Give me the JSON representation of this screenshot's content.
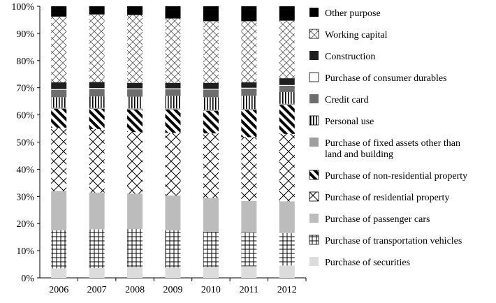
{
  "chart_data": {
    "type": "bar",
    "stacked": true,
    "normalized": true,
    "categories": [
      "2006",
      "2007",
      "2008",
      "2009",
      "2010",
      "2011",
      "2012"
    ],
    "ylim": [
      0,
      100
    ],
    "yticks": [
      "0%",
      "10%",
      "20%",
      "30%",
      "40%",
      "50%",
      "60%",
      "70%",
      "80%",
      "90%",
      "100%"
    ],
    "grid": false,
    "legend_position": "right",
    "series": [
      {
        "name": "Purchase of securities",
        "pattern": "light-gray",
        "values": [
          3.5,
          3.6,
          4.0,
          3.8,
          4.0,
          4.3,
          4.5
        ]
      },
      {
        "name": "Purchase of transportation vehicles",
        "pattern": "grid",
        "values": [
          14.0,
          14.3,
          14.0,
          13.7,
          13.0,
          12.4,
          12.0
        ]
      },
      {
        "name": "Purchase of passenger cars",
        "pattern": "gray",
        "values": [
          14.5,
          13.5,
          13.0,
          12.8,
          12.4,
          11.6,
          11.7
        ]
      },
      {
        "name": "Purchase of residential property",
        "pattern": "crosshatch",
        "values": [
          23.3,
          23.4,
          22.7,
          23.1,
          23.8,
          23.5,
          24.8
        ]
      },
      {
        "name": "Purchase of non-residential property",
        "pattern": "diagonal",
        "values": [
          7.0,
          7.4,
          8.3,
          8.6,
          8.3,
          10.0,
          10.7
        ]
      },
      {
        "name": "Purchase of fixed assets other than land and building",
        "pattern": "mid-gray",
        "values": [
          0.4,
          0.4,
          0.4,
          0.4,
          0.4,
          0.4,
          0.4
        ]
      },
      {
        "name": "Personal use",
        "pattern": "vertical-lines",
        "values": [
          3.8,
          4.2,
          4.3,
          4.6,
          4.6,
          4.9,
          4.3
        ]
      },
      {
        "name": "Credit card",
        "pattern": "dark-gray",
        "values": [
          2.7,
          2.8,
          2.8,
          2.5,
          2.8,
          2.6,
          2.3
        ]
      },
      {
        "name": "Purchase of consumer durables",
        "pattern": "white",
        "values": [
          0.3,
          0.3,
          0.3,
          0.3,
          0.3,
          0.3,
          0.3
        ]
      },
      {
        "name": "Construction",
        "pattern": "near-black",
        "values": [
          2.5,
          2.2,
          2.0,
          2.0,
          2.2,
          2.0,
          2.5
        ]
      },
      {
        "name": "Working capital",
        "pattern": "crosshatch-fine",
        "values": [
          24.2,
          24.9,
          25.0,
          23.7,
          22.7,
          22.5,
          21.2
        ]
      },
      {
        "name": "Other purpose",
        "pattern": "black",
        "values": [
          3.8,
          3.0,
          3.2,
          4.5,
          5.5,
          5.5,
          5.3
        ]
      }
    ]
  }
}
